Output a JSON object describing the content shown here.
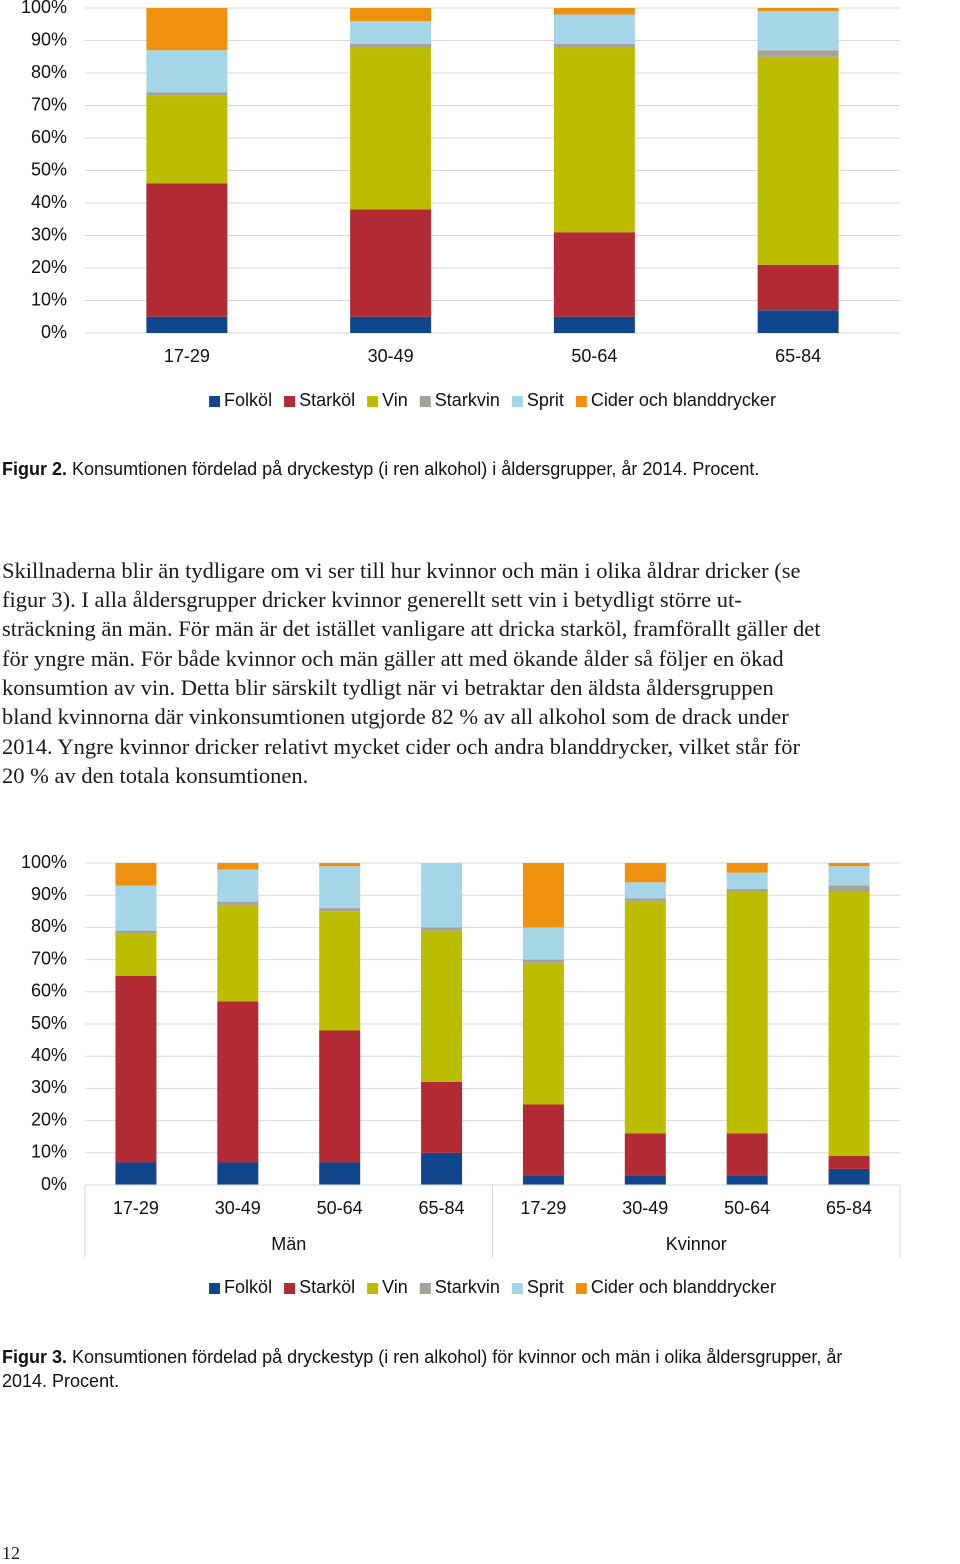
{
  "chart_data": [
    {
      "type": "bar",
      "stacked": true,
      "categories": [
        "17-29",
        "30-49",
        "50-64",
        "65-84"
      ],
      "series": [
        {
          "name": "Folköl",
          "color": "#10468c",
          "values": [
            5,
            5,
            5,
            7
          ]
        },
        {
          "name": "Starköl",
          "color": "#b22a33",
          "values": [
            41,
            33,
            26,
            14
          ]
        },
        {
          "name": "Vin",
          "color": "#bdbd00",
          "values": [
            27,
            50,
            57,
            64
          ]
        },
        {
          "name": "Starkvin",
          "color": "#a6a19a",
          "values": [
            1,
            1,
            1,
            2
          ]
        },
        {
          "name": "Sprit",
          "color": "#a5d6e8",
          "values": [
            13,
            7,
            9,
            12
          ]
        },
        {
          "name": "Cider och blanddrycker",
          "color": "#f0900f",
          "values": [
            13,
            4,
            2,
            1
          ]
        }
      ],
      "ylim": [
        0,
        100
      ],
      "yticks": [
        {
          "value": 0,
          "label": "0%"
        },
        {
          "value": 10,
          "label": "10%"
        },
        {
          "value": 20,
          "label": "20%"
        },
        {
          "value": 30,
          "label": "30%"
        },
        {
          "value": 40,
          "label": "40%"
        },
        {
          "value": 50,
          "label": "50%"
        },
        {
          "value": 60,
          "label": "60%"
        },
        {
          "value": 70,
          "label": "70%"
        },
        {
          "value": 80,
          "label": "80%"
        },
        {
          "value": 90,
          "label": "90%"
        },
        {
          "value": 100,
          "label": "100%"
        }
      ],
      "grid": true,
      "legend": "bottom"
    },
    {
      "type": "bar",
      "stacked": true,
      "categories": [
        "17-29",
        "30-49",
        "50-64",
        "65-84",
        "17-29",
        "30-49",
        "50-64",
        "65-84"
      ],
      "group_labels": [
        "Män",
        "Kvinnor"
      ],
      "series": [
        {
          "name": "Folköl",
          "color": "#10468c",
          "values": [
            7,
            7,
            7,
            10,
            3,
            3,
            3,
            5
          ]
        },
        {
          "name": "Starköl",
          "color": "#b22a33",
          "values": [
            58,
            50,
            41,
            22,
            22,
            13,
            13,
            4
          ]
        },
        {
          "name": "Vin",
          "color": "#bdbd00",
          "values": [
            13,
            30,
            37,
            47,
            44,
            72,
            75,
            82
          ]
        },
        {
          "name": "Starkvin",
          "color": "#a6a19a",
          "values": [
            1,
            1,
            1,
            1,
            1,
            1,
            1,
            2
          ]
        },
        {
          "name": "Sprit",
          "color": "#a5d6e8",
          "values": [
            14,
            10,
            13,
            20,
            10,
            5,
            5,
            6
          ]
        },
        {
          "name": "Cider och blanddrycker",
          "color": "#f0900f",
          "values": [
            7,
            2,
            1,
            0,
            20,
            6,
            3,
            1
          ]
        }
      ],
      "ylim": [
        0,
        100
      ],
      "yticks": [
        {
          "value": 0,
          "label": "0%"
        },
        {
          "value": 10,
          "label": "10%"
        },
        {
          "value": 20,
          "label": "20%"
        },
        {
          "value": 30,
          "label": "30%"
        },
        {
          "value": 40,
          "label": "40%"
        },
        {
          "value": 50,
          "label": "50%"
        },
        {
          "value": 60,
          "label": "60%"
        },
        {
          "value": 70,
          "label": "70%"
        },
        {
          "value": 80,
          "label": "80%"
        },
        {
          "value": 90,
          "label": "90%"
        },
        {
          "value": 100,
          "label": "100%"
        }
      ],
      "grid": true,
      "legend": "bottom"
    }
  ],
  "caption_2": {
    "label": "Figur 2.",
    "lines": [
      "Konsumtionen fördelad på dryckestyp (i ren alkohol) i åldersgrupper, år 2014. Procent."
    ]
  },
  "paragraph": [
    "Skillnaderna blir än tydligare om vi ser till hur kvinnor och män i olika åldrar dricker (se",
    "figur 3). I alla åldersgrupper dricker kvinnor generellt sett vin i betydligt större ut-",
    "sträckning än män. För män är det istället vanligare att dricka starköl, framförallt gäller det",
    "för yngre män. För både kvinnor och män gäller att med ökande ålder så följer en ökad",
    "konsumtion av vin. Detta blir särskilt tydligt när vi betraktar den äldsta åldersgruppen",
    "bland kvinnorna där vinkonsumtionen utgjorde 82 % av all alkohol som de drack under",
    "2014. Yngre kvinnor dricker relativt mycket cider och andra blanddrycker, vilket står för",
    "20 % av den totala konsumtionen."
  ],
  "caption_3": {
    "label": "Figur 3.",
    "lines": [
      "Konsumtionen fördelad på dryckestyp (i ren alkohol) för kvinnor och män i olika åldersgrupper, år",
      "2014. Procent."
    ]
  },
  "page_number": "12"
}
